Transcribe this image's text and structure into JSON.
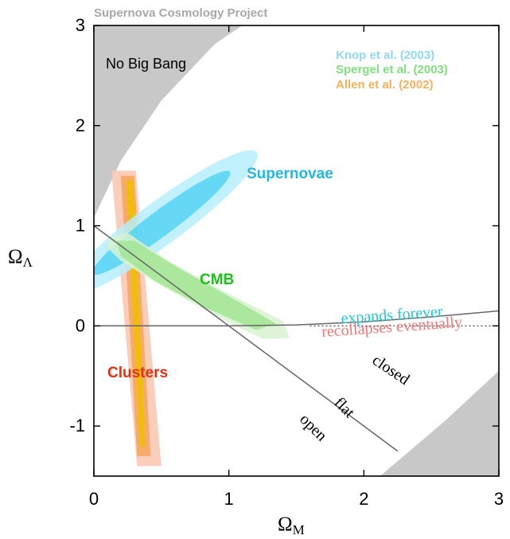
{
  "chart_data": {
    "type": "contour",
    "source_label": "Supernova Cosmology Project",
    "title": "",
    "xlabel": "Ω",
    "xlabel_sub": "M",
    "ylabel": "Ω",
    "ylabel_sub": "Λ",
    "xlim": [
      0,
      3
    ],
    "ylim": [
      -1.5,
      3
    ],
    "x_ticks": [
      {
        "value": 0,
        "label": "0"
      },
      {
        "value": 1,
        "label": "1"
      },
      {
        "value": 2,
        "label": "2"
      },
      {
        "value": 3,
        "label": "3"
      }
    ],
    "y_ticks": [
      {
        "value": -1,
        "label": "-1"
      },
      {
        "value": 0,
        "label": "0"
      },
      {
        "value": 1,
        "label": "1"
      },
      {
        "value": 2,
        "label": "2"
      },
      {
        "value": 3,
        "label": "3"
      }
    ],
    "legend": {
      "placement": "top-right",
      "entries": [
        {
          "label": "Knop et al. (2003)",
          "color": "#8fd8f2"
        },
        {
          "label": "Spergel et al. (2003)",
          "color": "#7fe07f"
        },
        {
          "label": "Allen et al. (2002)",
          "color": "#f5b15c"
        }
      ]
    },
    "regions": [
      {
        "label": "No Big Bang",
        "color": "#c8c8c8",
        "boundary": [
          [
            0,
            1.08
          ],
          [
            0.2,
            1.65
          ],
          [
            0.5,
            2.25
          ],
          [
            0.9,
            2.82
          ],
          [
            1.1,
            3.0
          ]
        ]
      },
      {
        "label": "",
        "color": "#c8c8c8",
        "boundary": [
          [
            2.12,
            -1.5
          ],
          [
            2.6,
            -0.95
          ],
          [
            3.0,
            -0.45
          ]
        ]
      }
    ],
    "constraints": [
      {
        "name": "Supernovae",
        "label_color": "#1fb8e6",
        "inner_color": "#55d4f5",
        "outer_color": "#b6eefb",
        "center": [
          0.5,
          1.03
        ],
        "angle_deg": 45.5,
        "semi_major_outer": 1.0,
        "semi_minor_outer": 0.19,
        "semi_major_inner": 0.72,
        "semi_minor_inner": 0.11
      },
      {
        "name": "CMB",
        "label_color": "#1cc21c",
        "inner_color": "#9fe58f",
        "outer_color": "#d7f3cf",
        "polygon_outer": [
          [
            0.12,
            0.88
          ],
          [
            0.25,
            0.93
          ],
          [
            0.55,
            0.65
          ],
          [
            1.0,
            0.32
          ],
          [
            1.4,
            0.05
          ],
          [
            1.45,
            -0.12
          ],
          [
            1.25,
            -0.13
          ],
          [
            0.9,
            0.1
          ],
          [
            0.5,
            0.4
          ],
          [
            0.2,
            0.65
          ],
          [
            0.1,
            0.78
          ]
        ],
        "polygon_inner": [
          [
            0.17,
            0.85
          ],
          [
            0.3,
            0.85
          ],
          [
            0.6,
            0.6
          ],
          [
            1.1,
            0.22
          ],
          [
            1.35,
            0.02
          ],
          [
            1.2,
            -0.04
          ],
          [
            0.8,
            0.2
          ],
          [
            0.45,
            0.45
          ],
          [
            0.2,
            0.7
          ]
        ]
      },
      {
        "name": "Clusters",
        "label_color": "#e53010",
        "outer_color": "#f9c9b3",
        "mid_color": "#f5a55a",
        "inner_color": "#f0c000",
        "band_outer": [
          [
            0.13,
            1.55
          ],
          [
            0.31,
            1.55
          ],
          [
            0.5,
            -1.4
          ],
          [
            0.32,
            -1.4
          ]
        ],
        "band_mid": [
          [
            0.2,
            1.5
          ],
          [
            0.3,
            1.5
          ],
          [
            0.42,
            -1.3
          ],
          [
            0.32,
            -1.3
          ]
        ],
        "band_inner": [
          [
            0.24,
            1.45
          ],
          [
            0.29,
            1.45
          ],
          [
            0.38,
            -1.2
          ],
          [
            0.34,
            -1.2
          ]
        ]
      }
    ],
    "lines": [
      {
        "label": "flat",
        "points": [
          [
            0,
            1
          ],
          [
            2.25,
            -1.25
          ]
        ],
        "color": "#666666"
      },
      {
        "label": "",
        "points": [
          [
            0,
            0
          ],
          [
            1,
            0
          ],
          [
            1.5,
            0.01
          ],
          [
            2,
            0.04
          ],
          [
            2.5,
            0.09
          ],
          [
            3,
            0.15
          ]
        ],
        "color": "#666666"
      },
      {
        "label": "",
        "points": [
          [
            1.6,
            0
          ],
          [
            3,
            0
          ]
        ],
        "color": "#333333",
        "style": "dotted"
      }
    ],
    "annotations": [
      {
        "text": "expands forever",
        "color": "#20c8d8",
        "at": [
          2.21,
          0.06
        ],
        "rotate": -4
      },
      {
        "text": "recollapses eventually",
        "color": "#f07878",
        "at": [
          2.21,
          -0.06
        ],
        "rotate": -4
      },
      {
        "text": "closed",
        "color": "#000000",
        "at": [
          2.18,
          -0.48
        ],
        "rotate": 34
      },
      {
        "text": "flat",
        "color": "#000000",
        "at": [
          1.83,
          -0.85
        ],
        "rotate": 45
      },
      {
        "text": "open",
        "color": "#000000",
        "at": [
          1.6,
          -1.05
        ],
        "rotate": 45
      }
    ],
    "grid": false
  }
}
